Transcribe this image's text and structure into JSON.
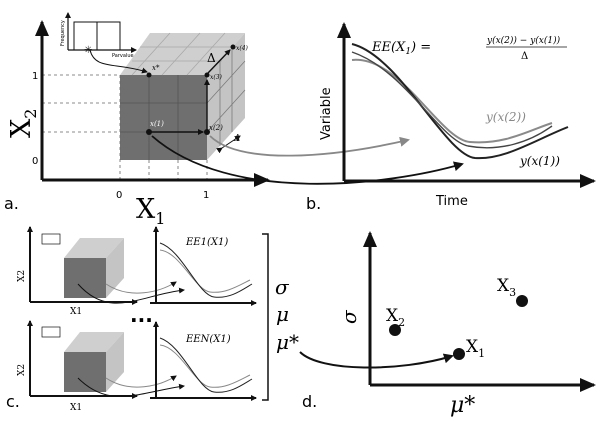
{
  "panel_labels": {
    "a": "a.",
    "b": "b.",
    "c": "c.",
    "d": "d."
  },
  "panel_a": {
    "x_axis": "X",
    "x_axis_sub": "1",
    "y_axis": "X",
    "y_axis_sub": "2",
    "x_ticks": [
      "0",
      "1"
    ],
    "y_ticks": [
      "0",
      "1"
    ],
    "inset_y_label": "Frequency",
    "inset_x_label": "Parvalue",
    "x_star": "x*",
    "x1": "x(1)",
    "x2": "x(2)",
    "x3": "x(3)",
    "x4": "x(4)",
    "delta": "Δ"
  },
  "panel_b": {
    "y_axis": "Variable",
    "x_axis": "Time",
    "ee_lhs": "EE(X",
    "ee_lhs_sub": "1",
    "ee_lhs_close": ") =",
    "ee_numerator": "y(x(2)) − y(x(1))",
    "ee_denominator": "Δ",
    "curve_2_label": "y(x(2))",
    "curve_1_label": "y(x(1))"
  },
  "panel_c": {
    "ee_first": "EE1(X1)",
    "ee_last": "EEN(X1)",
    "x_axis": "X1",
    "y_axis": "X2",
    "ellipsis": "...",
    "stats": [
      "σ",
      "μ",
      "μ*"
    ]
  },
  "panel_d": {
    "y_axis": "σ",
    "x_axis": "μ*",
    "points": [
      {
        "name": "X",
        "sub": "1"
      },
      {
        "name": "X",
        "sub": "2"
      },
      {
        "name": "X",
        "sub": "3"
      }
    ]
  },
  "colors": {
    "ink": "#111111",
    "dark_box": "#707070",
    "light_box": "#c9c9c9",
    "grey_curve": "#8a8a8a"
  }
}
